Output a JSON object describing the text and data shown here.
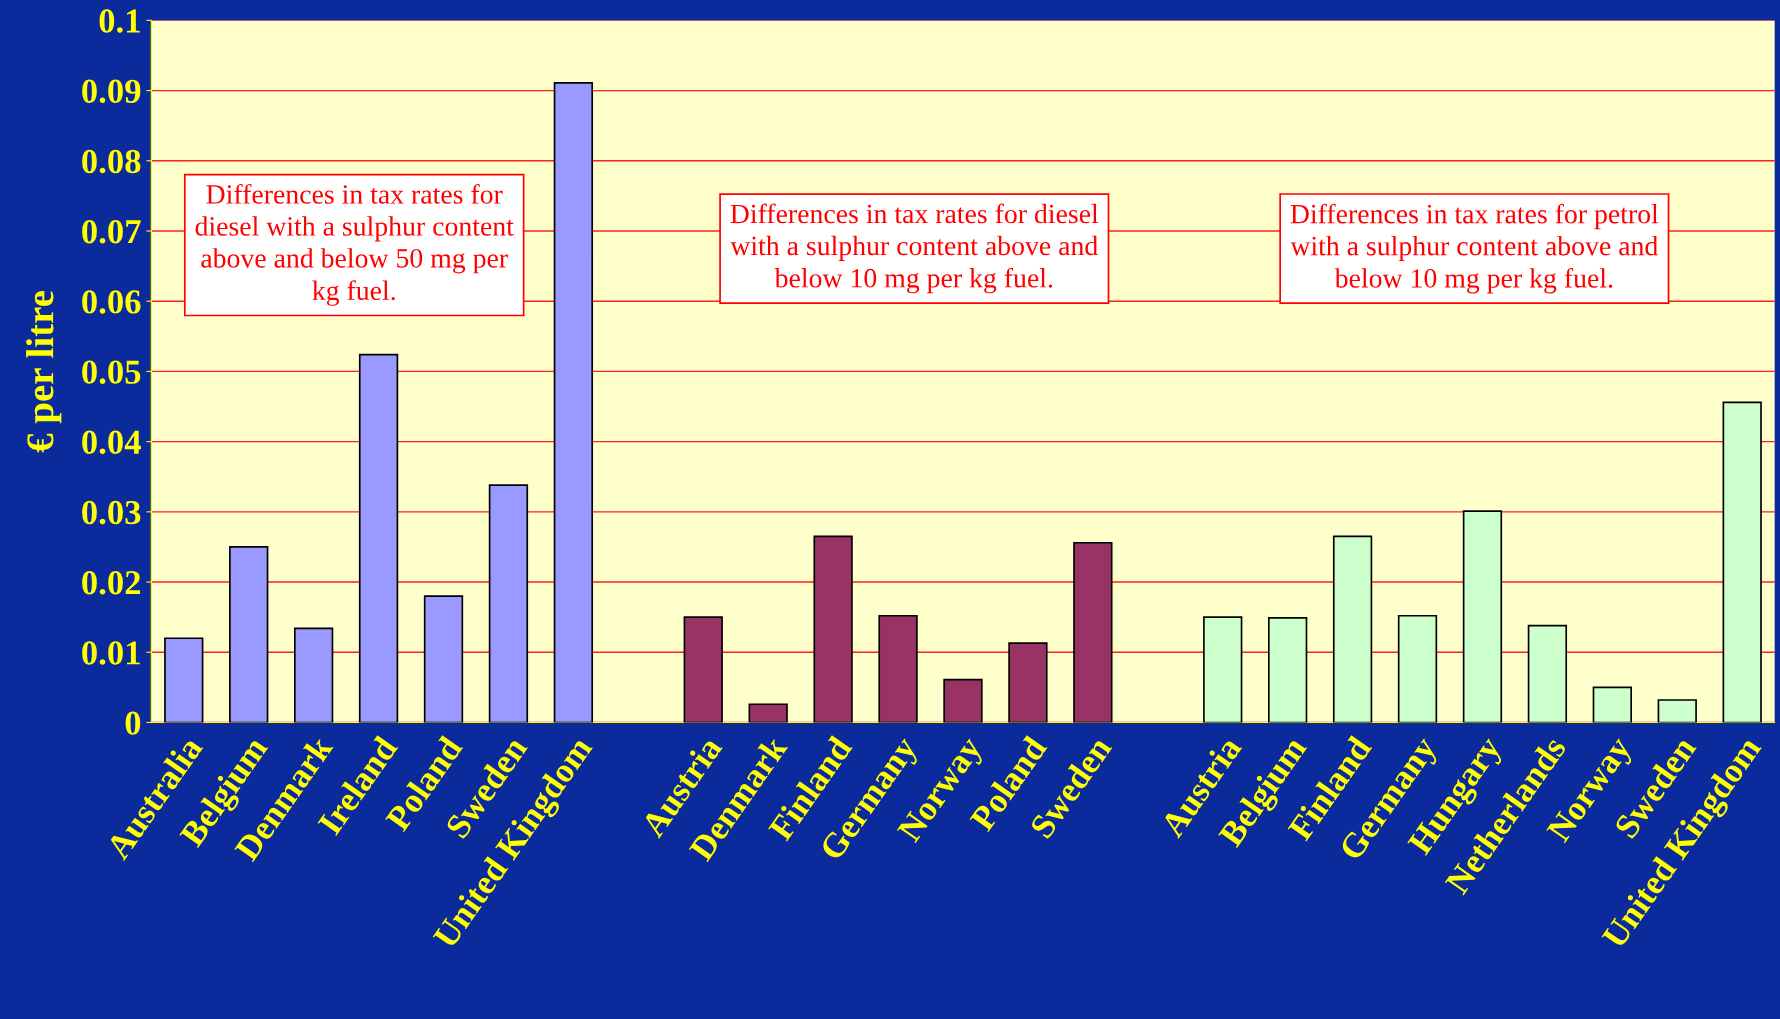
{
  "chart_data": {
    "type": "bar",
    "ylabel": "€ per litre",
    "categories": [
      "Australia",
      "Belgium",
      "Denmark",
      "Ireland",
      "Poland",
      "Sweden",
      "United Kingdom",
      null,
      "Austria",
      "Denmark",
      "Finland",
      "Germany",
      "Norway",
      "Poland",
      "Sweden",
      null,
      "Austria",
      "Belgium",
      "Finland",
      "Germany",
      "Hungary",
      "Netherlands",
      "Norway",
      "Sweden",
      "United Kingdom"
    ],
    "values": [
      0.012,
      0.025,
      0.0134,
      0.0524,
      0.018,
      0.0338,
      0.0911,
      null,
      0.015,
      0.0026,
      0.0265,
      0.0152,
      0.0061,
      0.0113,
      0.0256,
      null,
      0.015,
      0.0149,
      0.0265,
      0.0152,
      0.0301,
      0.0138,
      0.005,
      0.0032,
      0.0456
    ],
    "colors": [
      "#9999ff",
      "#9999ff",
      "#9999ff",
      "#9999ff",
      "#9999ff",
      "#9999ff",
      "#9999ff",
      null,
      "#993366",
      "#993366",
      "#993366",
      "#993366",
      "#993366",
      "#993366",
      "#993366",
      null,
      "#ccffcc",
      "#ccffcc",
      "#ccffcc",
      "#ccffcc",
      "#ccffcc",
      "#ccffcc",
      "#ccffcc",
      "#ccffcc",
      "#ccffcc"
    ],
    "ylim": [
      0,
      0.1
    ],
    "yticks": [
      0,
      0.01,
      0.02,
      0.03,
      0.04,
      0.05,
      0.06,
      0.07,
      0.08,
      0.09,
      0.1
    ],
    "grid": "y",
    "annotations": [
      "Differences in tax rates for\ndiesel with a sulphur content\nabove and below 50 mg per\nkg fuel.",
      "Differences in tax rates for diesel\nwith a sulphur content above and\nbelow 10 mg per kg fuel.",
      "Differences in tax rates for petrol\nwith a sulphur content above and\nbelow 10 mg per kg fuel."
    ]
  }
}
